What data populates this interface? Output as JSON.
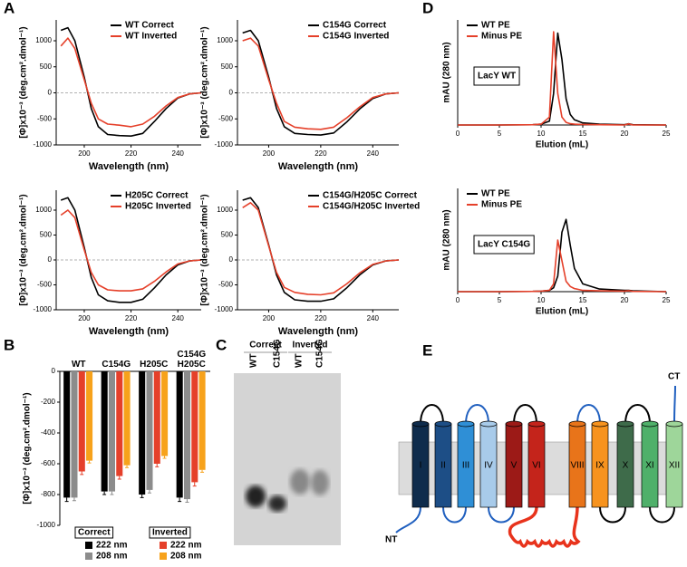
{
  "panels": [
    "A",
    "B",
    "C",
    "D",
    "E"
  ],
  "chart_data": [
    {
      "type": "line",
      "xlabel": "Wavelength (nm)",
      "ylabel": "[Φ]x10⁻³ (deg.cm².dmol⁻¹)",
      "xlim": [
        188,
        250
      ],
      "ylim": [
        -1000,
        1400
      ],
      "xticks": [
        200,
        220,
        240
      ],
      "yticks": [
        -1000,
        -500,
        0,
        500,
        1000
      ],
      "hline": 0,
      "legend": "upper right",
      "x": [
        190,
        193,
        196,
        200,
        203,
        206,
        210,
        215,
        220,
        225,
        230,
        235,
        240,
        245,
        250
      ],
      "series": [
        {
          "name": "WT Correct",
          "color": "#000000",
          "values": [
            1200,
            1250,
            1000,
            300,
            -300,
            -650,
            -800,
            -820,
            -830,
            -780,
            -550,
            -300,
            -100,
            -20,
            0
          ]
        },
        {
          "name": "WT Inverted",
          "color": "#e5402a",
          "values": [
            900,
            1050,
            850,
            250,
            -200,
            -500,
            -600,
            -620,
            -650,
            -600,
            -450,
            -250,
            -90,
            -20,
            0
          ]
        }
      ]
    },
    {
      "type": "line",
      "xlabel": "Wavelength (nm)",
      "ylabel": "[Φ]x10⁻³ (deg.cm².dmol⁻¹)",
      "xlim": [
        188,
        250
      ],
      "ylim": [
        -1000,
        1400
      ],
      "xticks": [
        200,
        220,
        240
      ],
      "yticks": [
        -1000,
        -500,
        0,
        500,
        1000
      ],
      "hline": 0,
      "legend": "upper right",
      "x": [
        190,
        193,
        196,
        200,
        203,
        206,
        210,
        215,
        220,
        225,
        230,
        235,
        240,
        245,
        250
      ],
      "series": [
        {
          "name": "C154G Correct",
          "color": "#000000",
          "values": [
            1150,
            1200,
            1000,
            300,
            -300,
            -650,
            -780,
            -800,
            -810,
            -770,
            -560,
            -310,
            -110,
            -20,
            0
          ]
        },
        {
          "name": "C154G Inverted",
          "color": "#e5402a",
          "values": [
            1000,
            1050,
            900,
            250,
            -200,
            -550,
            -660,
            -690,
            -700,
            -660,
            -480,
            -270,
            -90,
            -20,
            0
          ]
        }
      ]
    },
    {
      "type": "line",
      "xlabel": "Wavelength (nm)",
      "ylabel": "[Φ]x10⁻³ (deg.cm².dmol⁻¹)",
      "xlim": [
        188,
        250
      ],
      "ylim": [
        -1000,
        1400
      ],
      "xticks": [
        200,
        220,
        240
      ],
      "yticks": [
        -1000,
        -500,
        0,
        500,
        1000
      ],
      "hline": 0,
      "legend": "upper right",
      "x": [
        190,
        193,
        196,
        200,
        203,
        206,
        210,
        215,
        220,
        225,
        230,
        235,
        240,
        245,
        250
      ],
      "series": [
        {
          "name": "H205C Correct",
          "color": "#000000",
          "values": [
            1200,
            1250,
            1000,
            250,
            -350,
            -700,
            -820,
            -850,
            -850,
            -790,
            -560,
            -300,
            -100,
            -20,
            0
          ]
        },
        {
          "name": "H205C Inverted",
          "color": "#e5402a",
          "values": [
            900,
            1000,
            850,
            200,
            -250,
            -500,
            -600,
            -620,
            -620,
            -580,
            -430,
            -240,
            -80,
            -20,
            0
          ]
        }
      ]
    },
    {
      "type": "line",
      "xlabel": "Wavelength (nm)",
      "ylabel": "[Φ]x10⁻³ (deg.cm².dmol⁻¹)",
      "xlim": [
        188,
        250
      ],
      "ylim": [
        -1000,
        1400
      ],
      "xticks": [
        200,
        220,
        240
      ],
      "yticks": [
        -1000,
        -500,
        0,
        500,
        1000
      ],
      "hline": 0,
      "legend": "upper right",
      "x": [
        190,
        193,
        196,
        200,
        203,
        206,
        210,
        215,
        220,
        225,
        230,
        235,
        240,
        245,
        250
      ],
      "series": [
        {
          "name": "C154G/H205C Correct",
          "color": "#000000",
          "values": [
            1200,
            1250,
            1050,
            300,
            -300,
            -650,
            -800,
            -830,
            -830,
            -780,
            -560,
            -300,
            -100,
            -20,
            0
          ]
        },
        {
          "name": "C154G/H205C Inverted",
          "color": "#e5402a",
          "values": [
            1050,
            1150,
            1000,
            280,
            -250,
            -550,
            -650,
            -690,
            -700,
            -660,
            -480,
            -260,
            -90,
            -20,
            0
          ]
        }
      ]
    },
    {
      "type": "bar",
      "ylabel": "[Φ]x10⁻³ (deg.cm².dmol⁻¹)",
      "ylim": [
        -1000,
        0
      ],
      "yticks": [
        -1000,
        -800,
        -600,
        -400,
        -200,
        0
      ],
      "categories": [
        "WT",
        "C154G",
        "H205C",
        "C154G\nH205C"
      ],
      "series": [
        {
          "name": "222 nm",
          "group": "Correct",
          "color": "#000000",
          "values": [
            -820,
            -780,
            -800,
            -820
          ],
          "errors": [
            25,
            20,
            20,
            25
          ]
        },
        {
          "name": "208 nm",
          "group": "Correct",
          "color": "#8c8c8c",
          "values": [
            -820,
            -780,
            -770,
            -830
          ],
          "errors": [
            20,
            20,
            20,
            20
          ]
        },
        {
          "name": "222 nm",
          "group": "Inverted",
          "color": "#e5402a",
          "values": [
            -650,
            -680,
            -600,
            -720
          ],
          "errors": [
            20,
            20,
            20,
            25
          ]
        },
        {
          "name": "208 nm",
          "group": "Inverted",
          "color": "#f7a21b",
          "values": [
            -580,
            -610,
            -550,
            -640
          ],
          "errors": [
            15,
            15,
            15,
            15
          ]
        }
      ]
    },
    {
      "type": "line",
      "xlabel": "Elution (mL)",
      "ylabel": "mAU (280 nm)",
      "xlim": [
        0,
        25
      ],
      "ylim": [
        0,
        400
      ],
      "xticks": [
        0,
        5,
        10,
        15,
        20,
        25
      ],
      "legend": "upper left",
      "legend_text_colored": true,
      "annotation": "LacY WT",
      "x": [
        0,
        5,
        9,
        10,
        11,
        11.5,
        12,
        12.5,
        13,
        13.5,
        14,
        15,
        17,
        20,
        20.5,
        21,
        25
      ],
      "series": [
        {
          "name": "WT PE",
          "color": "#000000",
          "values": [
            0,
            0,
            1,
            3,
            15,
            120,
            350,
            250,
            100,
            40,
            20,
            8,
            3,
            1,
            5,
            1,
            0
          ]
        },
        {
          "name": "Minus PE",
          "color": "#e5402a",
          "values": [
            0,
            0,
            1,
            3,
            30,
            355,
            120,
            30,
            10,
            5,
            3,
            2,
            1,
            0,
            4,
            0,
            0
          ]
        }
      ]
    },
    {
      "type": "line",
      "xlabel": "Elution (mL)",
      "ylabel": "mAU (280 nm)",
      "xlim": [
        0,
        25
      ],
      "ylim": [
        0,
        400
      ],
      "xticks": [
        0,
        5,
        10,
        15,
        20,
        25
      ],
      "legend": "upper left",
      "legend_text_colored": true,
      "annotation": "LacY C154G",
      "x": [
        0,
        5,
        9,
        10,
        11,
        11.5,
        12,
        12.5,
        13,
        13.5,
        14,
        15,
        17,
        20,
        20.5,
        21,
        25
      ],
      "series": [
        {
          "name": "WT PE",
          "color": "#000000",
          "values": [
            0,
            0,
            1,
            2,
            5,
            15,
            60,
            230,
            280,
            180,
            90,
            30,
            10,
            5,
            5,
            3,
            0
          ]
        },
        {
          "name": "Minus PE",
          "color": "#e5402a",
          "values": [
            0,
            0,
            1,
            2,
            5,
            30,
            200,
            120,
            40,
            20,
            12,
            5,
            3,
            2,
            4,
            1,
            0
          ]
        }
      ]
    }
  ],
  "gel": {
    "groups": [
      "Correct",
      "Inverted"
    ],
    "lanes": [
      "WT",
      "C154G",
      "WT",
      "C154G"
    ]
  },
  "topology": {
    "n_term": "NT",
    "c_term": "CT",
    "helices": [
      {
        "label": "I",
        "color": "#0f2c4c"
      },
      {
        "label": "II",
        "color": "#1d4e86"
      },
      {
        "label": "III",
        "color": "#2f8fd6"
      },
      {
        "label": "IV",
        "color": "#a8cbea"
      },
      {
        "label": "V",
        "color": "#9c1a17"
      },
      {
        "label": "VI",
        "color": "#c4241b"
      },
      {
        "label": "VIII",
        "color": "#e8741a"
      },
      {
        "label": "IX",
        "color": "#f7931e"
      },
      {
        "label": "X",
        "color": "#3e6b4a"
      },
      {
        "label": "XI",
        "color": "#4fb06a"
      },
      {
        "label": "XII",
        "color": "#9ed69a"
      }
    ]
  }
}
